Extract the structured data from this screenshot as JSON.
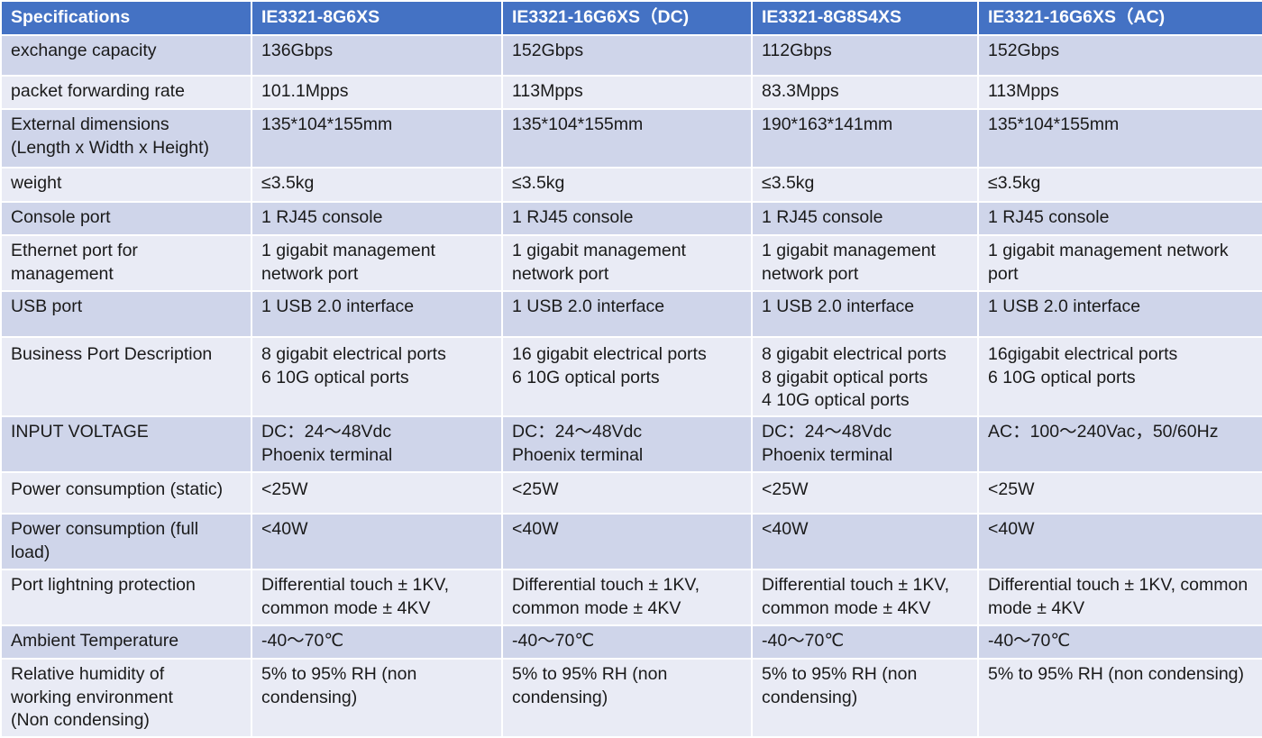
{
  "table": {
    "headers": [
      "Specifications",
      "IE3321-8G6XS",
      "IE3321-16G6XS（DC)",
      "IE3321-8G8S4XS",
      "IE3321-16G6XS（AC)"
    ],
    "rows": [
      [
        "exchange capacity",
        "136Gbps",
        "152Gbps",
        "112Gbps",
        "152Gbps"
      ],
      [
        "packet forwarding rate",
        "101.1Mpps",
        "113Mpps",
        "83.3Mpps",
        "113Mpps"
      ],
      [
        "External dimensions\n(Length x Width x Height)",
        "135*104*155mm",
        "135*104*155mm",
        "190*163*141mm",
        "135*104*155mm"
      ],
      [
        "weight",
        "≤3.5kg",
        "≤3.5kg",
        "≤3.5kg",
        "≤3.5kg"
      ],
      [
        "Console port",
        "1 RJ45 console",
        "1 RJ45 console",
        "1 RJ45 console",
        "1 RJ45 console"
      ],
      [
        "Ethernet port for\nmanagement",
        "1 gigabit management\nnetwork port",
        "1 gigabit management\nnetwork port",
        "1 gigabit management\nnetwork port",
        "1 gigabit management network\nport"
      ],
      [
        "USB port",
        "1 USB 2.0 interface",
        "1 USB 2.0 interface",
        "1 USB 2.0 interface",
        "1 USB 2.0 interface"
      ],
      [
        "Business Port Description",
        "8 gigabit electrical ports\n6 10G optical ports",
        "16 gigabit electrical ports\n6 10G optical ports",
        "8 gigabit electrical ports\n8 gigabit optical ports\n4 10G optical ports",
        "16gigabit electrical ports\n6 10G optical ports"
      ],
      [
        "INPUT VOLTAGE",
        "DC：24～48Vdc\nPhoenix terminal",
        "DC：24～48Vdc\nPhoenix terminal",
        "DC：24～48Vdc\nPhoenix terminal",
        "AC：100～240Vac，50/60Hz"
      ],
      [
        "Power consumption (static)",
        "<25W",
        "<25W",
        "<25W",
        "<25W"
      ],
      [
        "Power consumption (full\nload)",
        "<40W",
        "<40W",
        "<40W",
        "<40W"
      ],
      [
        "Port lightning protection",
        "Differential touch ± 1KV,\ncommon mode ± 4KV",
        "Differential touch ± 1KV,\ncommon mode ± 4KV",
        "Differential touch ± 1KV,\ncommon mode ± 4KV",
        "Differential touch ± 1KV, common\nmode ± 4KV"
      ],
      [
        "Ambient Temperature",
        "-40～70℃",
        "-40～70℃",
        "-40～70℃",
        "-40～70℃"
      ],
      [
        "Relative humidity of\nworking environment\n(Non condensing)",
        "5% to 95% RH (non\ncondensing)",
        "5% to 95% RH (non\ncondensing)",
        "5% to 95% RH (non\ncondensing)",
        "5% to 95% RH (non condensing)"
      ]
    ]
  },
  "colors": {
    "header_bg": "#4472c4",
    "row_dark": "#cfd5ea",
    "row_light": "#e9ebf5"
  }
}
